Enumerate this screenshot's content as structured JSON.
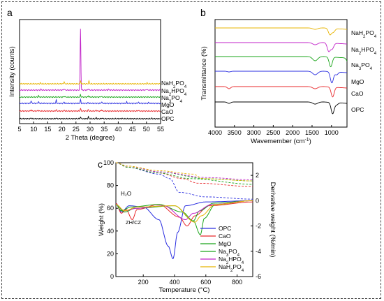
{
  "chart_data": [
    {
      "panel": "a",
      "type": "line",
      "xlabel": "2 Theta (degree)",
      "ylabel": "Intensity (counts)",
      "xlim": [
        5,
        55
      ],
      "xticks": [
        "5",
        "10",
        "15",
        "20",
        "25",
        "30",
        "35",
        "40",
        "45",
        "50",
        "55"
      ],
      "series": [
        {
          "name": "OPC",
          "color": "#000000",
          "offset": 0,
          "peaks": [
            [
              9.1,
              2
            ],
            [
              18.0,
              2
            ],
            [
              26.6,
              4
            ],
            [
              29.4,
              4
            ],
            [
              32.2,
              2
            ],
            [
              34.3,
              2
            ],
            [
              41.3,
              1
            ],
            [
              51.8,
              1
            ]
          ]
        },
        {
          "name": "CaO",
          "color": "#e8282b",
          "offset": 1,
          "peaks": [
            [
              9.1,
              3
            ],
            [
              11.6,
              2
            ],
            [
              18.0,
              3
            ],
            [
              20.9,
              2
            ],
            [
              26.6,
              6
            ],
            [
              29.4,
              3
            ],
            [
              32.2,
              2
            ],
            [
              34.1,
              3
            ],
            [
              47.1,
              2
            ]
          ]
        },
        {
          "name": "MgO",
          "color": "#2a2ee0",
          "offset": 2,
          "peaks": [
            [
              9.1,
              6
            ],
            [
              11.7,
              4
            ],
            [
              18.0,
              7
            ],
            [
              20.8,
              3
            ],
            [
              26.6,
              8
            ],
            [
              29.3,
              2
            ],
            [
              34.1,
              4
            ],
            [
              43.0,
              3
            ],
            [
              47.1,
              3
            ],
            [
              50.8,
              2
            ]
          ]
        },
        {
          "name": "Na3PO4",
          "color": "#1aa51a",
          "offset": 3,
          "peaks": [
            [
              11.7,
              3
            ],
            [
              20.9,
              2
            ],
            [
              26.6,
              5
            ],
            [
              29.4,
              3
            ],
            [
              33.9,
              2
            ]
          ]
        },
        {
          "name": "Na2HPO4",
          "color": "#c020c8",
          "offset": 4,
          "peaks": [
            [
              12.6,
              2
            ],
            [
              20.8,
              3
            ],
            [
              26.6,
              140
            ],
            [
              29.4,
              3
            ],
            [
              36.5,
              2
            ],
            [
              50.1,
              2
            ]
          ]
        },
        {
          "name": "NaH2PO4",
          "color": "#e8b400",
          "offset": 5,
          "peaks": [
            [
              12.4,
              2
            ],
            [
              20.8,
              5
            ],
            [
              26.6,
              7
            ],
            [
              29.6,
              6
            ],
            [
              50.2,
              2
            ]
          ]
        }
      ],
      "legend": [
        {
          "prefix": "NaH",
          "sub1": "2",
          "mid": "PO",
          "sub2": "4"
        },
        {
          "prefix": "Na",
          "sub1": "2",
          "mid": "HPO",
          "sub2": "4"
        },
        {
          "prefix": "Na",
          "sub1": "3",
          "mid": "PO",
          "sub2": "4"
        },
        {
          "prefix": "MgO",
          "sub1": "",
          "mid": "",
          "sub2": ""
        },
        {
          "prefix": "CaO",
          "sub1": "",
          "mid": "",
          "sub2": ""
        },
        {
          "prefix": "OPC",
          "sub1": "",
          "mid": "",
          "sub2": ""
        }
      ]
    },
    {
      "panel": "b",
      "type": "line",
      "xlabel": "Wavemember (cm",
      "xlabel_sup": "-1",
      "xlabel_end": ")",
      "ylabel": "Transmittance (%)",
      "xlim": [
        4000,
        600
      ],
      "xticks": [
        "4000",
        "3500",
        "3000",
        "2500",
        "2000",
        "1500",
        "1000"
      ],
      "series": [
        {
          "name": "OPC",
          "color": "#000000",
          "offset": 0,
          "dips": [
            [
              3640,
              2
            ],
            [
              1420,
              3
            ],
            [
              970,
              16
            ],
            [
              870,
              3
            ]
          ]
        },
        {
          "name": "CaO",
          "color": "#e8282b",
          "offset": 1,
          "dips": [
            [
              3640,
              3
            ],
            [
              1420,
              3
            ],
            [
              970,
              14
            ]
          ]
        },
        {
          "name": "MgO",
          "color": "#2a2ee0",
          "offset": 2,
          "dips": [
            [
              3640,
              1
            ],
            [
              1420,
              5
            ],
            [
              990,
              16
            ],
            [
              870,
              4
            ]
          ]
        },
        {
          "name": "Na3PO4",
          "color": "#1aa51a",
          "offset": 3,
          "dips": [
            [
              1420,
              6
            ],
            [
              1020,
              14
            ],
            [
              570,
              6
            ]
          ]
        },
        {
          "name": "Na2HPO4",
          "color": "#c020c8",
          "offset": 4,
          "dips": [
            [
              1420,
              3
            ],
            [
              1070,
              12
            ],
            [
              980,
              8
            ]
          ]
        },
        {
          "name": "NaH2PO4",
          "color": "#e8b400",
          "offset": 5,
          "dips": [
            [
              1420,
              2
            ],
            [
              1040,
              9
            ],
            [
              950,
              5
            ]
          ]
        }
      ],
      "legend": [
        {
          "prefix": "NaH",
          "sub1": "2",
          "mid": "PO",
          "sub2": "4"
        },
        {
          "prefix": "Na",
          "sub1": "2",
          "mid": "HPO",
          "sub2": "4"
        },
        {
          "prefix": "Na",
          "sub1": "3",
          "mid": "PO",
          "sub2": "4"
        },
        {
          "prefix": "MgO",
          "sub1": "",
          "mid": "",
          "sub2": ""
        },
        {
          "prefix": "CaO",
          "sub1": "",
          "mid": "",
          "sub2": ""
        },
        {
          "prefix": "OPC",
          "sub1": "",
          "mid": "",
          "sub2": ""
        }
      ]
    },
    {
      "panel": "c",
      "type": "line",
      "xlabel": "Temperature (°C)",
      "ylabel": "Weight (%)",
      "y2label": "Derivative weight (%/min)",
      "xlim": [
        25,
        900
      ],
      "ylim": [
        0,
        100
      ],
      "y2lim": [
        -6,
        3
      ],
      "xticks": [
        "200",
        "400",
        "600",
        "800"
      ],
      "yticks": [
        "0",
        "20",
        "40",
        "60",
        "80",
        "100"
      ],
      "y2ticks": [
        "-6",
        "-4",
        "-2",
        "0",
        "2"
      ],
      "annotations": [
        "H₂O",
        "ZH/CZ"
      ],
      "weight_series": [
        {
          "name": "OPC",
          "color": "#2a2ee0",
          "points": [
            [
              25,
              100
            ],
            [
              100,
              96
            ],
            [
              300,
              90
            ],
            [
              370,
              86
            ],
            [
              430,
              74
            ],
            [
              600,
              70
            ],
            [
              900,
              68
            ]
          ]
        },
        {
          "name": "CaO",
          "color": "#e8282b",
          "points": [
            [
              25,
              100
            ],
            [
              100,
              96
            ],
            [
              300,
              91
            ],
            [
              450,
              86
            ],
            [
              550,
              82
            ],
            [
              900,
              79
            ]
          ]
        },
        {
          "name": "MgO",
          "color": "#1aa51a",
          "points": [
            [
              25,
              100
            ],
            [
              100,
              96
            ],
            [
              300,
              91
            ],
            [
              500,
              86
            ],
            [
              900,
              81
            ]
          ]
        },
        {
          "name": "Na3PO4",
          "color": "#1aa51a",
          "points": [
            [
              25,
              100
            ],
            [
              100,
              97
            ],
            [
              300,
              92
            ],
            [
              600,
              86
            ],
            [
              900,
              84
            ]
          ]
        },
        {
          "name": "Na2HPO4",
          "color": "#c020c8",
          "points": [
            [
              25,
              100
            ],
            [
              100,
              97
            ],
            [
              300,
              92
            ],
            [
              600,
              87
            ],
            [
              900,
              85
            ]
          ]
        },
        {
          "name": "NaH2PO4",
          "color": "#e8b400",
          "points": [
            [
              25,
              100
            ],
            [
              100,
              97
            ],
            [
              300,
              93
            ],
            [
              520,
              90
            ],
            [
              580,
              86
            ],
            [
              900,
              84
            ]
          ]
        }
      ],
      "derivative_series": [
        {
          "name": "OPC",
          "color": "#2a2ee0",
          "points": [
            [
              25,
              -0.2
            ],
            [
              60,
              -0.9
            ],
            [
              110,
              -0.4
            ],
            [
              200,
              -0.5
            ],
            [
              300,
              -1.5
            ],
            [
              360,
              -3.6
            ],
            [
              390,
              -4.6
            ],
            [
              420,
              -2.5
            ],
            [
              470,
              -0.4
            ],
            [
              600,
              -0.1
            ],
            [
              900,
              0
            ]
          ]
        },
        {
          "name": "CaO",
          "color": "#e8282b",
          "points": [
            [
              25,
              -0.2
            ],
            [
              60,
              -1.0
            ],
            [
              90,
              -0.7
            ],
            [
              130,
              -1.5
            ],
            [
              160,
              -0.7
            ],
            [
              300,
              -0.3
            ],
            [
              430,
              -1.3
            ],
            [
              480,
              -2.0
            ],
            [
              530,
              -1.2
            ],
            [
              620,
              -0.4
            ],
            [
              900,
              -0.1
            ]
          ]
        },
        {
          "name": "MgO",
          "color": "#1aa51a",
          "points": [
            [
              25,
              -0.3
            ],
            [
              60,
              -0.8
            ],
            [
              120,
              -0.5
            ],
            [
              300,
              -0.3
            ],
            [
              450,
              -0.9
            ],
            [
              520,
              -1.6
            ],
            [
              560,
              -0.8
            ],
            [
              650,
              -0.2
            ],
            [
              900,
              0
            ]
          ]
        },
        {
          "name": "Na3PO4",
          "color": "#1aa51a",
          "points": [
            [
              25,
              -0.3
            ],
            [
              80,
              -0.9
            ],
            [
              150,
              -0.6
            ],
            [
              400,
              -0.4
            ],
            [
              520,
              -1.6
            ],
            [
              565,
              -2.7
            ],
            [
              590,
              -1.4
            ],
            [
              660,
              -0.3
            ],
            [
              900,
              0
            ]
          ]
        },
        {
          "name": "Na2HPO4",
          "color": "#c020c8",
          "points": [
            [
              25,
              -0.3
            ],
            [
              80,
              -0.8
            ],
            [
              160,
              -0.6
            ],
            [
              330,
              -0.4
            ],
            [
              470,
              -1.5
            ],
            [
              520,
              -1.0
            ],
            [
              640,
              -0.3
            ],
            [
              900,
              0
            ]
          ]
        },
        {
          "name": "NaH2PO4",
          "color": "#e8b400",
          "points": [
            [
              25,
              -0.3
            ],
            [
              80,
              -0.8
            ],
            [
              160,
              -0.5
            ],
            [
              400,
              -0.4
            ],
            [
              530,
              -1.7
            ],
            [
              570,
              -1.2
            ],
            [
              660,
              -0.3
            ],
            [
              900,
              0
            ]
          ]
        }
      ],
      "legend": [
        {
          "color": "#2a2ee0",
          "prefix": "OPC",
          "sub1": "",
          "mid": "",
          "sub2": ""
        },
        {
          "color": "#e8282b",
          "prefix": "CaO",
          "sub1": "",
          "mid": "",
          "sub2": ""
        },
        {
          "color": "#1aa51a",
          "prefix": "MgO",
          "sub1": "",
          "mid": "",
          "sub2": ""
        },
        {
          "color": "#1aa51a",
          "prefix": "Na",
          "sub1": "3",
          "mid": "PO",
          "sub2": "4"
        },
        {
          "color": "#c020c8",
          "prefix": "Na",
          "sub1": "2",
          "mid": "HPO",
          "sub2": "4"
        },
        {
          "color": "#e8b400",
          "prefix": "NaH",
          "sub1": "2",
          "mid": "PO",
          "sub2": "4"
        }
      ]
    }
  ],
  "panel_letters": [
    "a",
    "b",
    "c"
  ]
}
